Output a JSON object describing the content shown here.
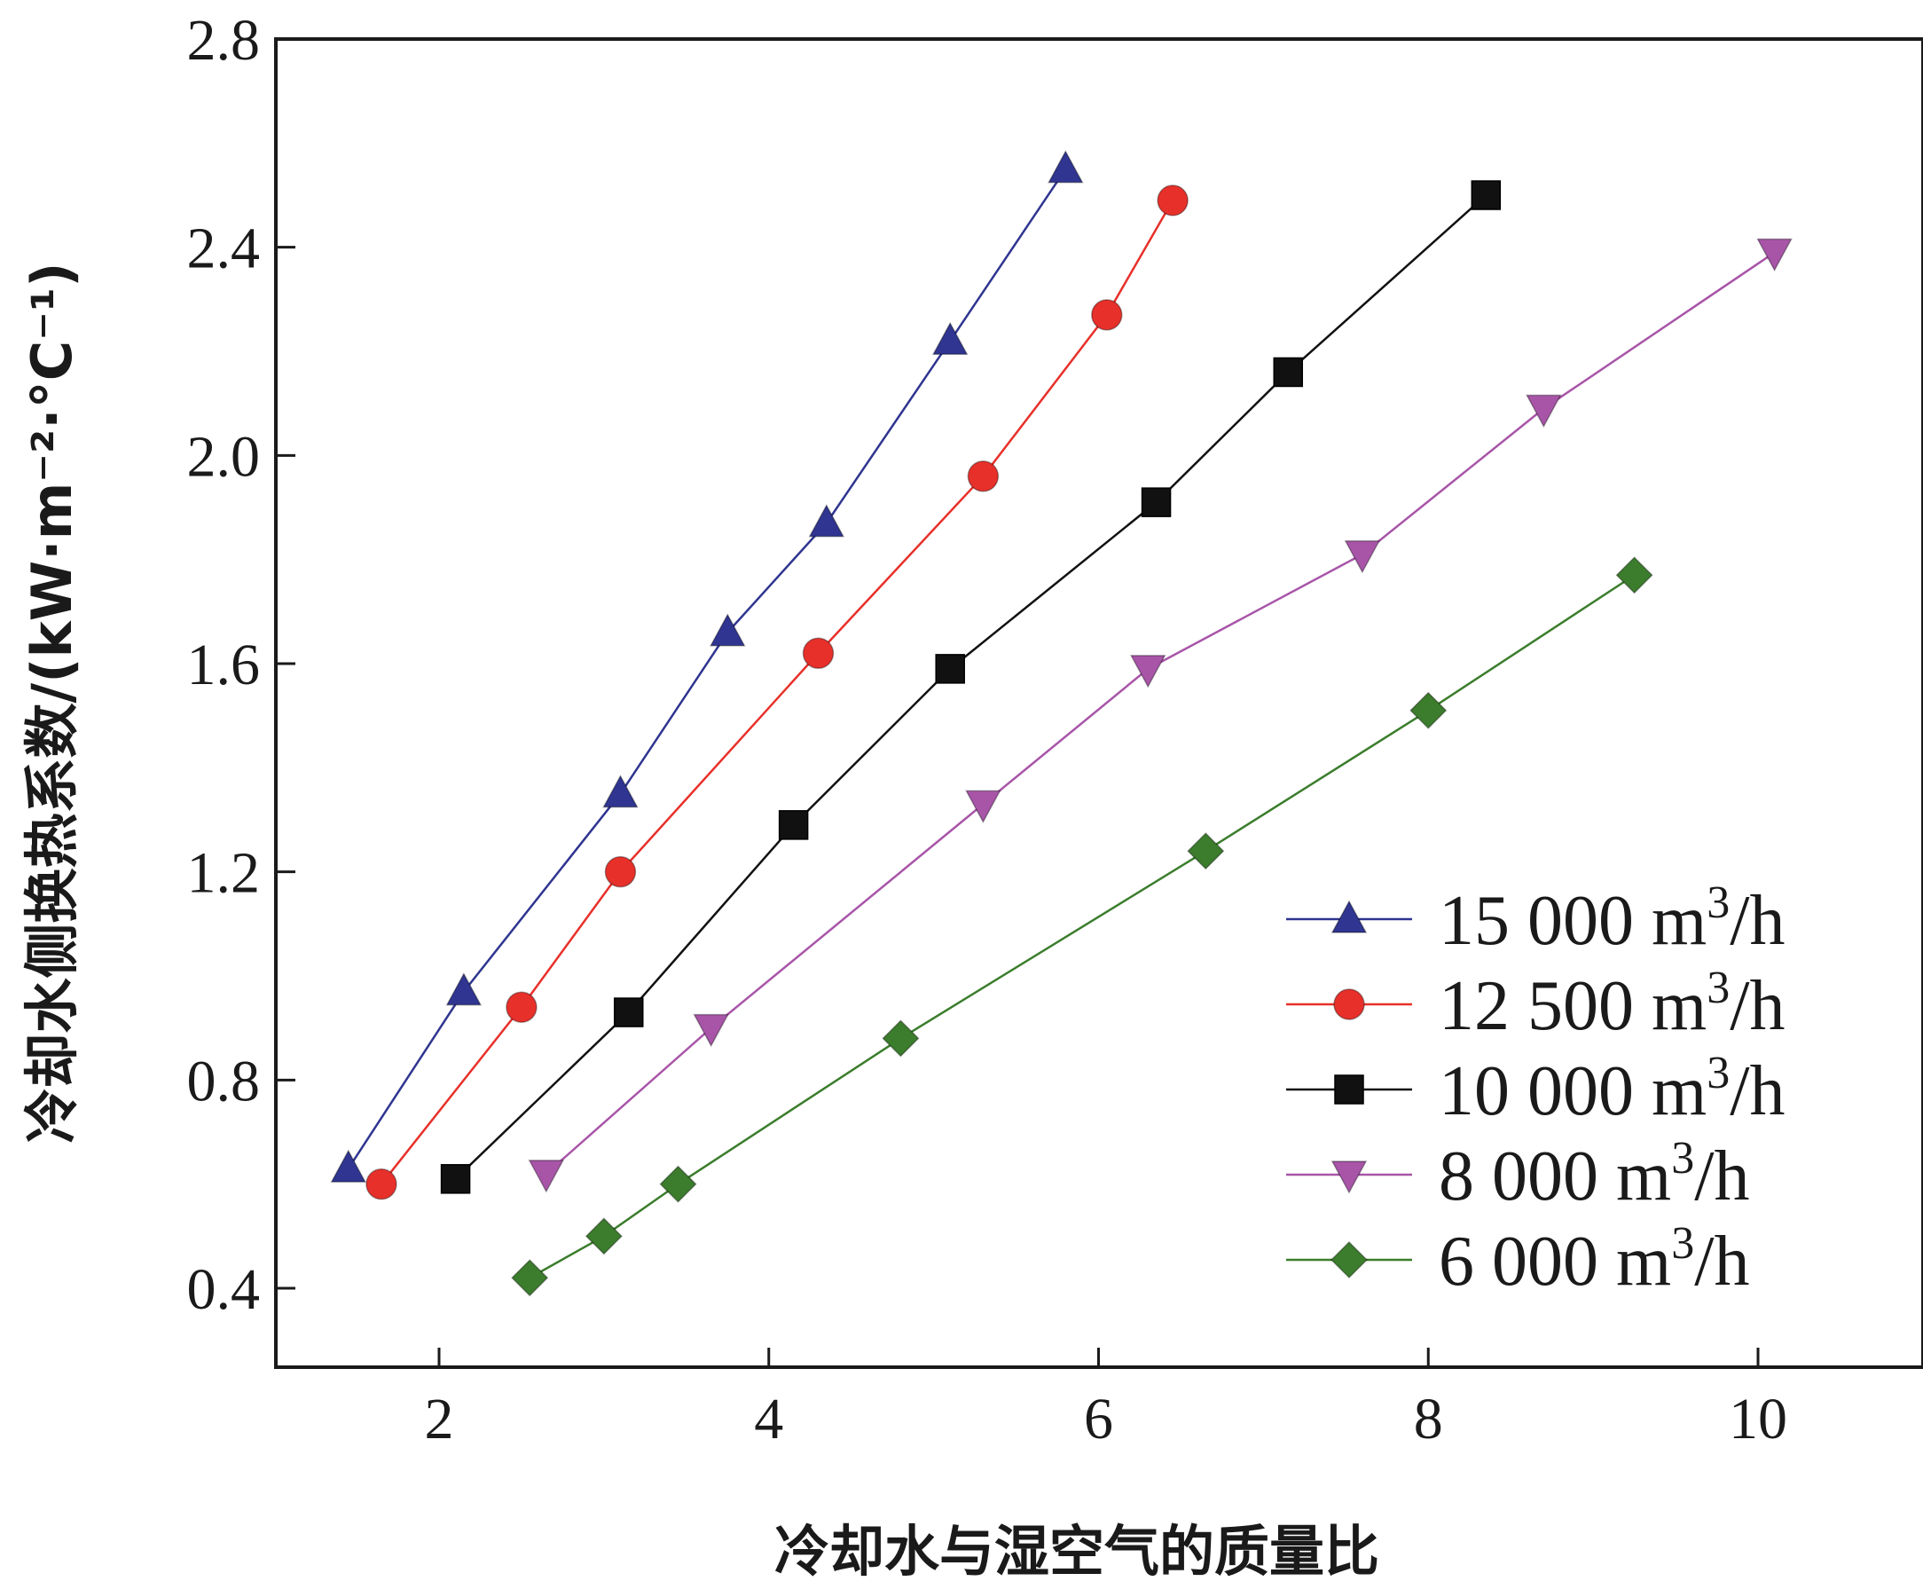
{
  "chart_data": {
    "type": "line",
    "xlabel": "冷却水与湿空气的质量比",
    "ylabel": "冷却水侧换热系数/(kW·m⁻²·°C⁻¹)",
    "xlim": [
      1,
      11
    ],
    "ylim": [
      0.25,
      2.8
    ],
    "xticks": [
      "2",
      "4",
      "6",
      "8",
      "10"
    ],
    "yticks": [
      "0.4",
      "0.8",
      "1.2",
      "1.6",
      "2.0",
      "2.4",
      "2.8"
    ],
    "legend_position": "bottom-right",
    "grid": false,
    "series": [
      {
        "name": "15 000 m³/h",
        "label_main": "15 000 m",
        "label_sup": "3",
        "label_tail": "/h",
        "color": "#2f3590",
        "marker": "triangle-up",
        "x": [
          1.45,
          2.15,
          3.1,
          3.75,
          4.35,
          5.1,
          5.8
        ],
        "y": [
          0.63,
          0.97,
          1.35,
          1.66,
          1.87,
          2.22,
          2.55
        ]
      },
      {
        "name": "12 500 m³/h",
        "label_main": "12 500 m",
        "label_sup": "3",
        "label_tail": "/h",
        "color": "#e8302a",
        "marker": "circle",
        "x": [
          1.65,
          2.5,
          3.1,
          4.3,
          5.3,
          6.05,
          6.45
        ],
        "y": [
          0.6,
          0.94,
          1.2,
          1.62,
          1.96,
          2.27,
          2.49
        ]
      },
      {
        "name": "10 000 m³/h",
        "label_main": "10 000 m",
        "label_sup": "3",
        "label_tail": "/h",
        "color": "#111111",
        "marker": "square",
        "x": [
          2.1,
          3.15,
          4.15,
          5.1,
          6.35,
          7.15,
          8.35
        ],
        "y": [
          0.61,
          0.93,
          1.29,
          1.59,
          1.91,
          2.16,
          2.5
        ]
      },
      {
        "name": "8 000 m³/h",
        "label_main": "8 000 m",
        "label_sup": "3",
        "label_tail": "/h",
        "color": "#a855a8",
        "marker": "triangle-down",
        "x": [
          2.65,
          3.65,
          5.3,
          6.3,
          7.6,
          8.7,
          10.1
        ],
        "y": [
          0.62,
          0.9,
          1.33,
          1.59,
          1.81,
          2.09,
          2.39
        ]
      },
      {
        "name": "6 000 m³/h",
        "label_main": "6 000 m",
        "label_sup": "3",
        "label_tail": "/h",
        "color": "#3b7d2c",
        "marker": "diamond",
        "x": [
          2.55,
          3.0,
          3.45,
          4.8,
          6.65,
          8.0,
          9.25
        ],
        "y": [
          0.42,
          0.5,
          0.6,
          0.88,
          1.24,
          1.51,
          1.77
        ]
      }
    ]
  }
}
